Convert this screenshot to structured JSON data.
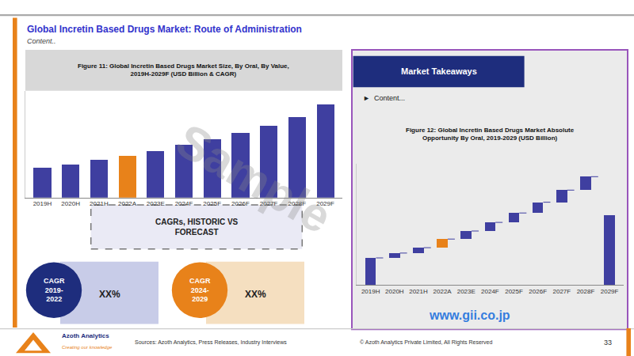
{
  "chart_data": [
    {
      "type": "bar",
      "title": "Figure 11: Global Incretin Based Drugs Market Size, By Oral, By Value,\n2019H-2029F (USD Billion & CAGR)",
      "categories": [
        "2019H",
        "2020H",
        "2021H",
        "2022A",
        "2023E",
        "2024F",
        "2025F",
        "2026F",
        "2027F",
        "2028F",
        "2029F"
      ],
      "values": [
        2.0,
        2.2,
        2.5,
        2.8,
        3.1,
        3.5,
        3.9,
        4.3,
        4.8,
        5.4,
        6.2
      ],
      "colors": [
        "#3f3fa0",
        "#3f3fa0",
        "#3f3fa0",
        "#e8821a",
        "#3f3fa0",
        "#3f3fa0",
        "#3f3fa0",
        "#3f3fa0",
        "#3f3fa0",
        "#3f3fa0",
        "#3f3fa0"
      ],
      "ylim": [
        0,
        7.13
      ],
      "grid": false,
      "tick_labels": "x",
      "annotations": [
        "Global Incretin Based Drugs Market: Route of Administration",
        "Content..",
        "CAGRs, HISTORIC VS\nFORECAST",
        "CAGR\n2019-\n2022",
        "XX%",
        "CAGR\n2024-\n2029",
        "XX%",
        "Sample",
        "www.gii.co.jp",
        "Azoth Analytics",
        "Creating our knowledge",
        "Sources: Azoth Analytics, Press Releases, Industry Interviews",
        "© Azoth Analytics Private Limited, All Rights Reserved",
        "33"
      ]
    },
    {
      "type": "waterfall",
      "title": "Figure 12: Global Incretin Based Drugs Market Absolute\nOpportunity By Oral, 2019-2029 (USD Billion)",
      "categories": [
        "2019H",
        "2020H",
        "2021H",
        "2022A",
        "2023E",
        "2024F",
        "2025F",
        "2026F",
        "2027F",
        "2028F",
        "2029F"
      ],
      "values": [
        1.0,
        0.18,
        0.2,
        0.32,
        0.3,
        0.32,
        0.35,
        0.4,
        0.45,
        0.5,
        2.6
      ],
      "colors": [
        "#3f3fa0",
        "#3f3fa0",
        "#3f3fa0",
        "#e8821a",
        "#3f3fa0",
        "#3f3fa0",
        "#3f3fa0",
        "#3f3fa0",
        "#3f3fa0",
        "#3f3fa0",
        "#3f3fa0"
      ],
      "ylim": [
        0,
        4.5
      ],
      "grid": false,
      "tick_labels": "x",
      "annotations": [
        "Market Takeaways",
        "►  Content..."
      ]
    }
  ]
}
